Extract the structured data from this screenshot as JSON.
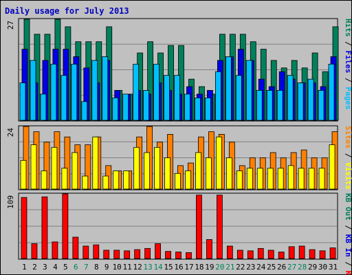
{
  "title": "Daily usage for July 2013",
  "colors": {
    "hits": "#00805c",
    "files": "#0000e6",
    "pages": "#00c0ff",
    "visits": "#ffff00",
    "sites": "#ff8000",
    "kbin": "#0000e6",
    "kbout": "#00805c",
    "kbf": "#ff0000",
    "weekend": "#00805c",
    "weekday": "#000000"
  },
  "chart_data": [
    {
      "type": "bar",
      "panel": "hits-files-pages",
      "ymax_label": "27",
      "right_labels": [
        "Pages",
        "Files",
        "Hits"
      ],
      "categories": [
        "1",
        "2",
        "3",
        "4",
        "5",
        "6",
        "7",
        "8",
        "9",
        "10",
        "11",
        "12",
        "13",
        "14",
        "15",
        "16",
        "17",
        "18",
        "19",
        "20",
        "21",
        "22",
        "23",
        "24",
        "25",
        "26",
        "27",
        "28",
        "29",
        "30",
        "31"
      ],
      "series": [
        {
          "name": "Hits",
          "values": [
            27,
            23,
            23,
            27,
            25,
            21,
            21,
            21,
            25,
            8,
            7,
            18,
            21,
            18,
            20,
            20,
            11,
            9,
            7,
            23,
            23,
            23,
            21,
            19,
            16,
            14,
            16,
            14,
            18,
            13,
            25
          ]
        },
        {
          "name": "Files",
          "values": [
            19,
            10,
            16,
            19,
            19,
            17,
            14,
            10,
            16,
            8,
            7,
            8,
            7,
            10,
            8,
            7,
            9,
            7,
            8,
            16,
            17,
            19,
            16,
            11,
            9,
            13,
            11,
            10,
            10,
            9,
            17
          ]
        },
        {
          "name": "Pages",
          "values": [
            10,
            16,
            7,
            15,
            12,
            15,
            5,
            16,
            17,
            6,
            7,
            15,
            8,
            15,
            12,
            12,
            7,
            6,
            6,
            13,
            17,
            12,
            16,
            8,
            8,
            8,
            12,
            10,
            11,
            8,
            15
          ]
        }
      ]
    },
    {
      "type": "bar",
      "panel": "visits-sites",
      "ymax_label": "24",
      "right_labels": [
        "Visits",
        "Sites"
      ],
      "categories": [
        "1",
        "2",
        "3",
        "4",
        "5",
        "6",
        "7",
        "8",
        "9",
        "10",
        "11",
        "12",
        "13",
        "14",
        "15",
        "16",
        "17",
        "18",
        "19",
        "20",
        "21",
        "22",
        "23",
        "24",
        "25",
        "26",
        "27",
        "28",
        "29",
        "30",
        "31"
      ],
      "series": [
        {
          "name": "Visits",
          "values": [
            11,
            17,
            7,
            16,
            8,
            14,
            5,
            20,
            5,
            7,
            7,
            16,
            14,
            16,
            12,
            6,
            7,
            14,
            12,
            20,
            12,
            7,
            8,
            8,
            8,
            8,
            9,
            8,
            8,
            8,
            17
          ]
        },
        {
          "name": "Sites",
          "values": [
            24,
            22,
            18,
            22,
            20,
            17,
            17,
            20,
            9,
            7,
            7,
            20,
            24,
            18,
            21,
            9,
            10,
            20,
            22,
            21,
            18,
            9,
            12,
            12,
            14,
            12,
            14,
            15,
            12,
            12,
            22
          ]
        }
      ]
    },
    {
      "type": "bar",
      "panel": "kbf",
      "ymax_label": "109",
      "right_labels": [
        "KB F",
        "KB In",
        "KB Out"
      ],
      "categories": [
        "1",
        "2",
        "3",
        "4",
        "5",
        "6",
        "7",
        "8",
        "9",
        "10",
        "11",
        "12",
        "13",
        "14",
        "15",
        "16",
        "17",
        "18",
        "19",
        "20",
        "21",
        "22",
        "23",
        "24",
        "25",
        "26",
        "27",
        "28",
        "29",
        "30",
        "31"
      ],
      "series": [
        {
          "name": "KB F",
          "values": [
            103,
            25,
            104,
            28,
            109,
            36,
            21,
            23,
            14,
            14,
            13,
            15,
            17,
            25,
            12,
            11,
            10,
            107,
            32,
            107,
            21,
            14,
            13,
            17,
            14,
            11,
            20,
            21,
            15,
            13,
            18
          ]
        }
      ]
    }
  ],
  "weekend_days": [
    "6",
    "7",
    "13",
    "14",
    "20",
    "21",
    "27",
    "28"
  ]
}
